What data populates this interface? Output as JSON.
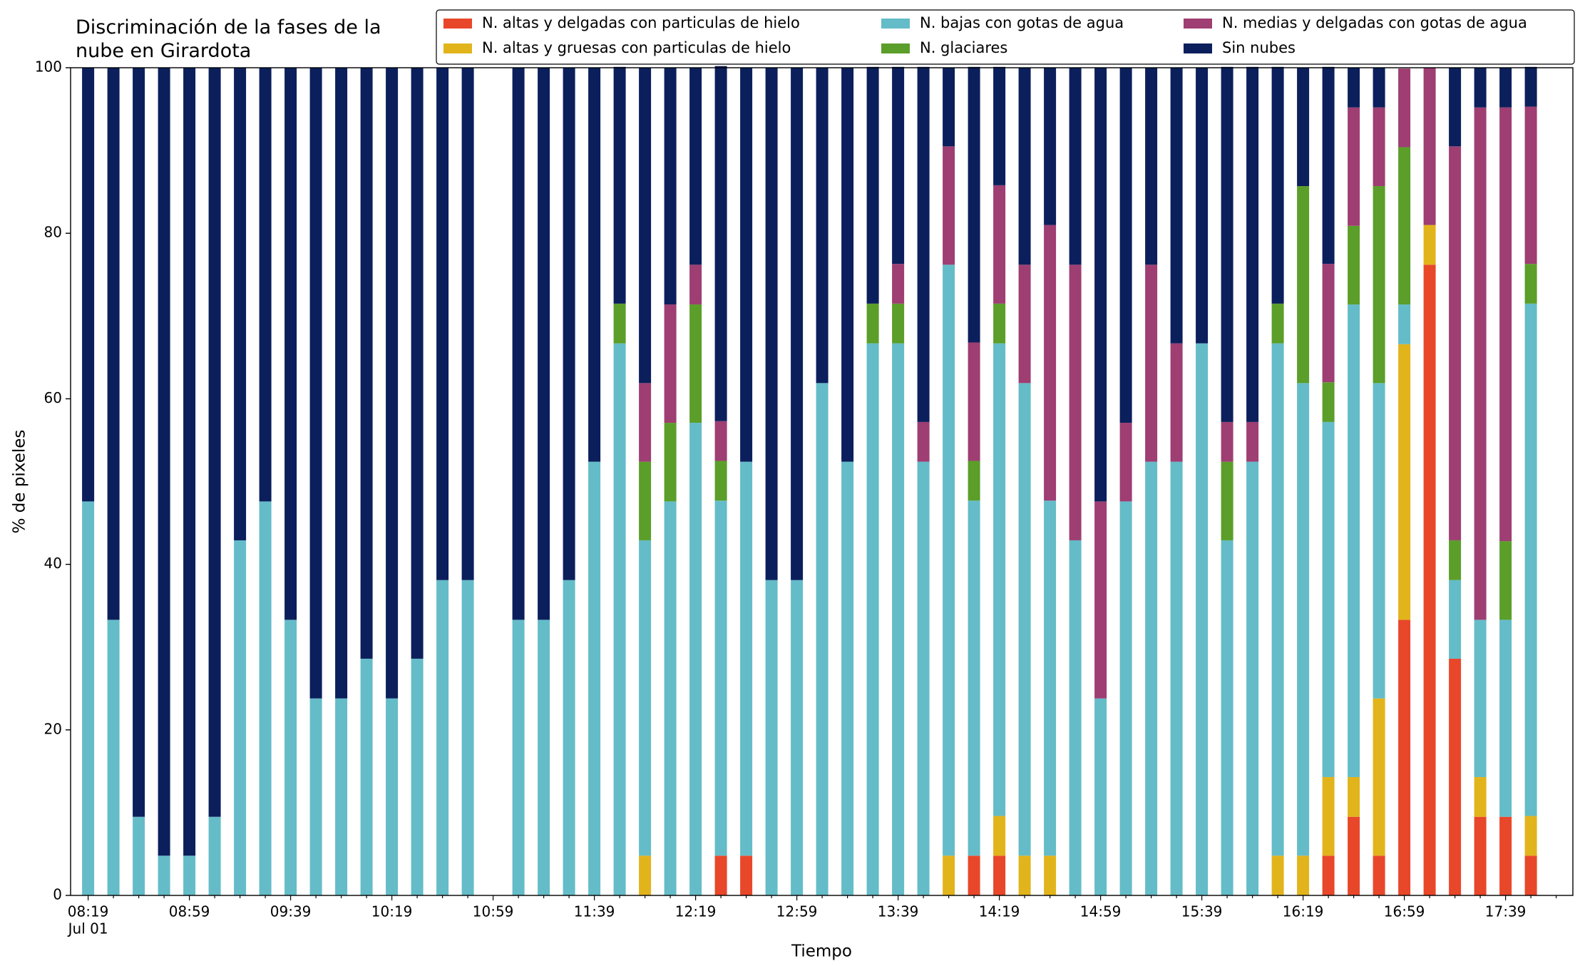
{
  "chart_data": {
    "type": "stacked_bar",
    "title": "Discriminación de la fases de la nube en Girardota",
    "x_label": "Tiempo",
    "y_label": "% de pixeles",
    "x_date_label": "Jul 01",
    "categories": [
      "08:19",
      null,
      null,
      null,
      "08:59",
      null,
      null,
      null,
      "09:39",
      null,
      null,
      null,
      "10:19",
      null,
      null,
      null,
      "10:59",
      null,
      null,
      null,
      "11:39",
      null,
      null,
      null,
      "12:19",
      null,
      null,
      null,
      "12:59",
      null,
      null,
      null,
      "13:39",
      null,
      null,
      null,
      "14:19",
      null,
      null,
      null,
      "14:59",
      null,
      null,
      null,
      "15:39",
      null,
      null,
      null,
      "16:19",
      null,
      null,
      null,
      "16:59",
      null,
      null,
      null,
      "17:39",
      null
    ],
    "ylim": [
      0,
      100
    ],
    "yticks": [
      0,
      20,
      40,
      60,
      80,
      100
    ],
    "grid": false,
    "series": [
      {
        "name": "N. altas y delgadas con particulas de hielo",
        "color": "#e8472a",
        "values": [
          0,
          0,
          0,
          0,
          0,
          0,
          0,
          0,
          0,
          0,
          0,
          0,
          0,
          0,
          0,
          0,
          null,
          0,
          0,
          0,
          0,
          0,
          0,
          0,
          0,
          4.8,
          4.8,
          0,
          0,
          0,
          0,
          0,
          0,
          0,
          0,
          4.8,
          4.8,
          0,
          0,
          0,
          0,
          0,
          0,
          0,
          0,
          0,
          0,
          0,
          0,
          4.8,
          9.5,
          4.8,
          33.3,
          76.2,
          28.6,
          9.5,
          9.5,
          4.8
        ]
      },
      {
        "name": "N. altas y gruesas con particulas de hielo",
        "color": "#e2b41c",
        "values": [
          0,
          0,
          0,
          0,
          0,
          0,
          0,
          0,
          0,
          0,
          0,
          0,
          0,
          0,
          0,
          0,
          null,
          0,
          0,
          0,
          0,
          0,
          4.8,
          0,
          0,
          0,
          0,
          0,
          0,
          0,
          0,
          0,
          0,
          0,
          4.8,
          0,
          4.8,
          4.8,
          4.8,
          0,
          0,
          0,
          0,
          0,
          0,
          0,
          0,
          4.8,
          4.8,
          9.5,
          4.8,
          19,
          33.3,
          4.8,
          0,
          4.8,
          0,
          4.8
        ]
      },
      {
        "name": "N. bajas con gotas de agua",
        "color": "#64bcc8",
        "values": [
          47.6,
          33.3,
          9.5,
          4.8,
          4.8,
          9.5,
          42.9,
          47.6,
          33.3,
          23.8,
          23.8,
          28.6,
          23.8,
          28.6,
          38.1,
          38.1,
          null,
          33.3,
          33.3,
          38.1,
          52.4,
          66.7,
          38.1,
          47.6,
          57.1,
          42.9,
          47.6,
          38.1,
          38.1,
          61.9,
          52.4,
          66.7,
          66.7,
          52.4,
          71.4,
          42.9,
          57.1,
          57.1,
          42.9,
          42.9,
          23.8,
          47.6,
          52.4,
          52.4,
          66.7,
          42.9,
          52.4,
          61.9,
          57.1,
          42.9,
          57.1,
          38.1,
          4.8,
          0,
          9.5,
          19,
          23.8,
          61.9
        ]
      },
      {
        "name": "N. glaciares",
        "color": "#5b9e2a",
        "values": [
          0,
          0,
          0,
          0,
          0,
          0,
          0,
          0,
          0,
          0,
          0,
          0,
          0,
          0,
          0,
          0,
          null,
          0,
          0,
          0,
          0,
          4.8,
          9.5,
          9.5,
          14.3,
          4.8,
          0,
          0,
          0,
          0,
          0,
          4.8,
          4.8,
          0,
          0,
          4.8,
          4.8,
          0,
          0,
          0,
          0,
          0,
          0,
          0,
          0,
          9.5,
          0,
          4.8,
          23.8,
          4.8,
          9.5,
          23.8,
          19,
          0,
          4.8,
          0,
          9.5,
          4.8
        ]
      },
      {
        "name": "N. medias y delgadas con gotas de agua",
        "color": "#9e3e72",
        "values": [
          0,
          0,
          0,
          0,
          0,
          0,
          0,
          0,
          0,
          0,
          0,
          0,
          0,
          0,
          0,
          0,
          null,
          0,
          0,
          0,
          0,
          0,
          9.5,
          14.3,
          4.8,
          4.8,
          0,
          0,
          0,
          0,
          0,
          0,
          4.8,
          4.8,
          14.3,
          14.3,
          14.3,
          14.3,
          33.3,
          33.3,
          23.8,
          9.5,
          23.8,
          14.3,
          0,
          4.8,
          4.8,
          0,
          0,
          14.3,
          14.3,
          9.5,
          9.5,
          19,
          47.6,
          61.9,
          52.4,
          19
        ]
      },
      {
        "name": "Sin nubes",
        "color": "#0b1f5c",
        "values": [
          52.4,
          66.7,
          90.5,
          95.2,
          95.2,
          90.5,
          57.1,
          52.4,
          66.7,
          76.2,
          76.2,
          71.4,
          76.2,
          71.4,
          61.9,
          61.9,
          null,
          66.7,
          66.7,
          61.9,
          47.6,
          28.6,
          38.1,
          28.6,
          23.8,
          42.9,
          47.6,
          61.9,
          61.9,
          38.1,
          47.6,
          28.6,
          23.8,
          42.9,
          9.5,
          33.3,
          14.3,
          23.8,
          19,
          23.8,
          52.4,
          42.9,
          23.8,
          33.3,
          33.3,
          42.9,
          42.9,
          28.6,
          14.3,
          23.8,
          4.8,
          4.8,
          0,
          0,
          9.5,
          4.8,
          4.8,
          4.8
        ]
      }
    ]
  }
}
